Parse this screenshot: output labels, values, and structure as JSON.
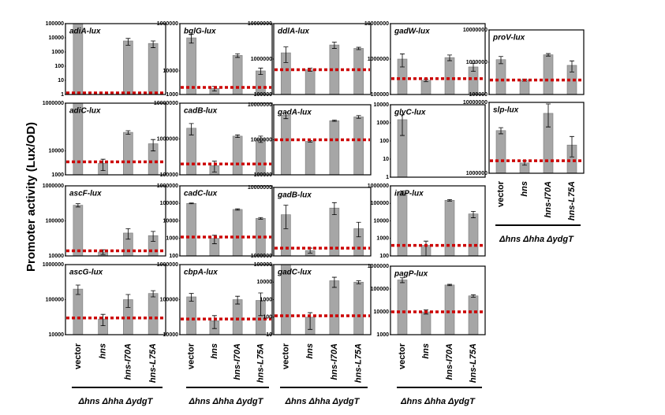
{
  "y_label": "Promoter activity (Lux/OD)",
  "categories": [
    "vector",
    "hns",
    "hns-I70A",
    "hns-L75A"
  ],
  "group_label": "Δhns Δhha ΔydgT",
  "bar_color": "#a6a6a6",
  "reference_color": "#cc0000",
  "chart_data": [
    {
      "type": "bar",
      "title": "adiA-lux",
      "log_scale": true,
      "ylim": [
        1,
        100000
      ],
      "yticks": [
        1,
        10,
        100,
        1000,
        10000,
        100000
      ],
      "values": [
        100000,
        null,
        6000,
        4000
      ],
      "errors": [
        0,
        null,
        3000,
        2000
      ],
      "reference": 1.3
    },
    {
      "type": "bar",
      "title": "adiC-lux",
      "log_scale": true,
      "ylim": [
        1000,
        1000000
      ],
      "yticks": [
        1000,
        10000,
        1000000
      ],
      "values": [
        1000000,
        3000,
        60000,
        20000
      ],
      "errors": [
        0,
        1500,
        10000,
        10000
      ],
      "reference": 3500
    },
    {
      "type": "bar",
      "title": "ascF-lux",
      "log_scale": true,
      "ylim": [
        10000,
        1000000
      ],
      "yticks": [
        10000,
        100000,
        1000000
      ],
      "values": [
        280000,
        13000,
        45000,
        38000
      ],
      "errors": [
        30000,
        2000,
        15000,
        12000
      ],
      "reference": 14000
    },
    {
      "type": "bar",
      "title": "ascG-lux",
      "log_scale": true,
      "ylim": [
        10000,
        1000000
      ],
      "yticks": [
        10000,
        100000,
        1000000
      ],
      "values": [
        200000,
        28000,
        100000,
        150000
      ],
      "errors": [
        60000,
        10000,
        40000,
        30000
      ],
      "reference": 30000
    },
    {
      "type": "bar",
      "title": "bglG-lux",
      "log_scale": true,
      "ylim": [
        1000,
        1000000
      ],
      "yticks": [
        1000,
        10000,
        1000000
      ],
      "values": [
        250000,
        1800,
        45000,
        10000
      ],
      "errors": [
        100000,
        400,
        8000,
        3000
      ],
      "reference": 2000
    },
    {
      "type": "bar",
      "title": "cadB-lux",
      "log_scale": true,
      "ylim": [
        100000,
        10000000
      ],
      "yticks": [
        100000,
        1000000,
        10000000
      ],
      "values": [
        2000000,
        180000,
        1200000,
        1000000
      ],
      "errors": [
        700000,
        60000,
        100000,
        200000
      ],
      "reference": 200000
    },
    {
      "type": "bar",
      "title": "cadC-lux",
      "log_scale": true,
      "ylim": [
        100,
        1000000
      ],
      "yticks": [
        100,
        1000,
        10000,
        100000,
        1000000
      ],
      "values": [
        100000,
        1000,
        45000,
        14000
      ],
      "errors": [
        5000,
        500,
        4000,
        1500
      ],
      "reference": 1200
    },
    {
      "type": "bar",
      "title": "cbpA-lux",
      "log_scale": true,
      "ylim": [
        10000,
        1000000
      ],
      "yticks": [
        10000,
        100000,
        1000000
      ],
      "values": [
        120000,
        25000,
        100000,
        95000
      ],
      "errors": [
        30000,
        10000,
        25000,
        60000
      ],
      "reference": 28000
    },
    {
      "type": "bar",
      "title": "ddlA-lux",
      "log_scale": true,
      "ylim": [
        100000,
        10000000
      ],
      "yticks": [
        100000,
        1000000,
        10000000
      ],
      "values": [
        1500000,
        500000,
        2500000,
        2000000
      ],
      "errors": [
        700000,
        50000,
        500000,
        150000
      ],
      "reference": 500000
    },
    {
      "type": "bar",
      "title": "gadA-lux",
      "log_scale": true,
      "ylim": [
        100000,
        10000000
      ],
      "yticks": [
        100000,
        1000000,
        10000000
      ],
      "values": [
        5000000,
        900000,
        3500000,
        4500000
      ],
      "errors": [
        1000000,
        50000,
        150000,
        400000
      ],
      "reference": 1000000
    },
    {
      "type": "bar",
      "title": "gadB-lux",
      "log_scale": true,
      "ylim": [
        1000000,
        10000000
      ],
      "yticks": [
        1000000,
        10000000
      ],
      "values": [
        4000000,
        1200000,
        5000000,
        2500000
      ],
      "errors": [
        1500000,
        100000,
        1000000,
        600000
      ],
      "reference": 1300000
    },
    {
      "type": "bar",
      "title": "gadC-lux",
      "log_scale": true,
      "ylim": [
        10,
        100000
      ],
      "yticks": [
        10,
        100,
        1000,
        10000,
        100000
      ],
      "values": [
        100000,
        100,
        12000,
        10000
      ],
      "errors": [
        0,
        80,
        7000,
        2000
      ],
      "reference": 120
    },
    {
      "type": "bar",
      "title": "gadW-lux",
      "log_scale": true,
      "ylim": [
        100000,
        10000000
      ],
      "yticks": [
        100000,
        1000000,
        10000000
      ],
      "values": [
        1000000,
        250000,
        1100000,
        600000
      ],
      "errors": [
        400000,
        20000,
        200000,
        150000
      ],
      "reference": 280000
    },
    {
      "type": "bar",
      "title": "glyC-lux",
      "log_scale": true,
      "ylim": [
        1,
        10000
      ],
      "yticks": [
        1,
        10,
        100,
        1000,
        10000
      ],
      "values": [
        1500,
        null,
        null,
        null
      ],
      "errors": [
        1300,
        null,
        null,
        null
      ]
    },
    {
      "type": "bar",
      "title": "iraP-lux",
      "log_scale": true,
      "ylim": [
        100,
        1000000
      ],
      "yticks": [
        100,
        1000,
        10000,
        100000,
        1000000
      ],
      "values": [
        400000,
        400,
        150000,
        25000
      ],
      "errors": [
        100000,
        300,
        15000,
        10000
      ],
      "reference": 400
    },
    {
      "type": "bar",
      "title": "pagP-lux",
      "log_scale": true,
      "ylim": [
        1000,
        1000000
      ],
      "yticks": [
        1000,
        10000,
        100000,
        1000000
      ],
      "values": [
        250000,
        10000,
        150000,
        50000
      ],
      "errors": [
        60000,
        2000,
        10000,
        6000
      ],
      "reference": 10000
    },
    {
      "type": "bar",
      "title": "proV-lux",
      "log_scale": true,
      "ylim": [
        100000,
        10000000
      ],
      "yticks": [
        100000,
        1000000,
        10000000
      ],
      "values": [
        1200000,
        280000,
        1700000,
        800000
      ],
      "errors": [
        300000,
        20000,
        150000,
        300000
      ],
      "reference": 280000
    },
    {
      "type": "bar",
      "title": "slp-lux",
      "log_scale": true,
      "ylim": [
        1000000,
        10000000
      ],
      "yticks": [
        1000000,
        10000000
      ],
      "values": [
        4000000,
        1400000,
        7000000,
        2500000
      ],
      "errors": [
        400000,
        100000,
        2500000,
        800000
      ],
      "reference": 1500000
    }
  ]
}
